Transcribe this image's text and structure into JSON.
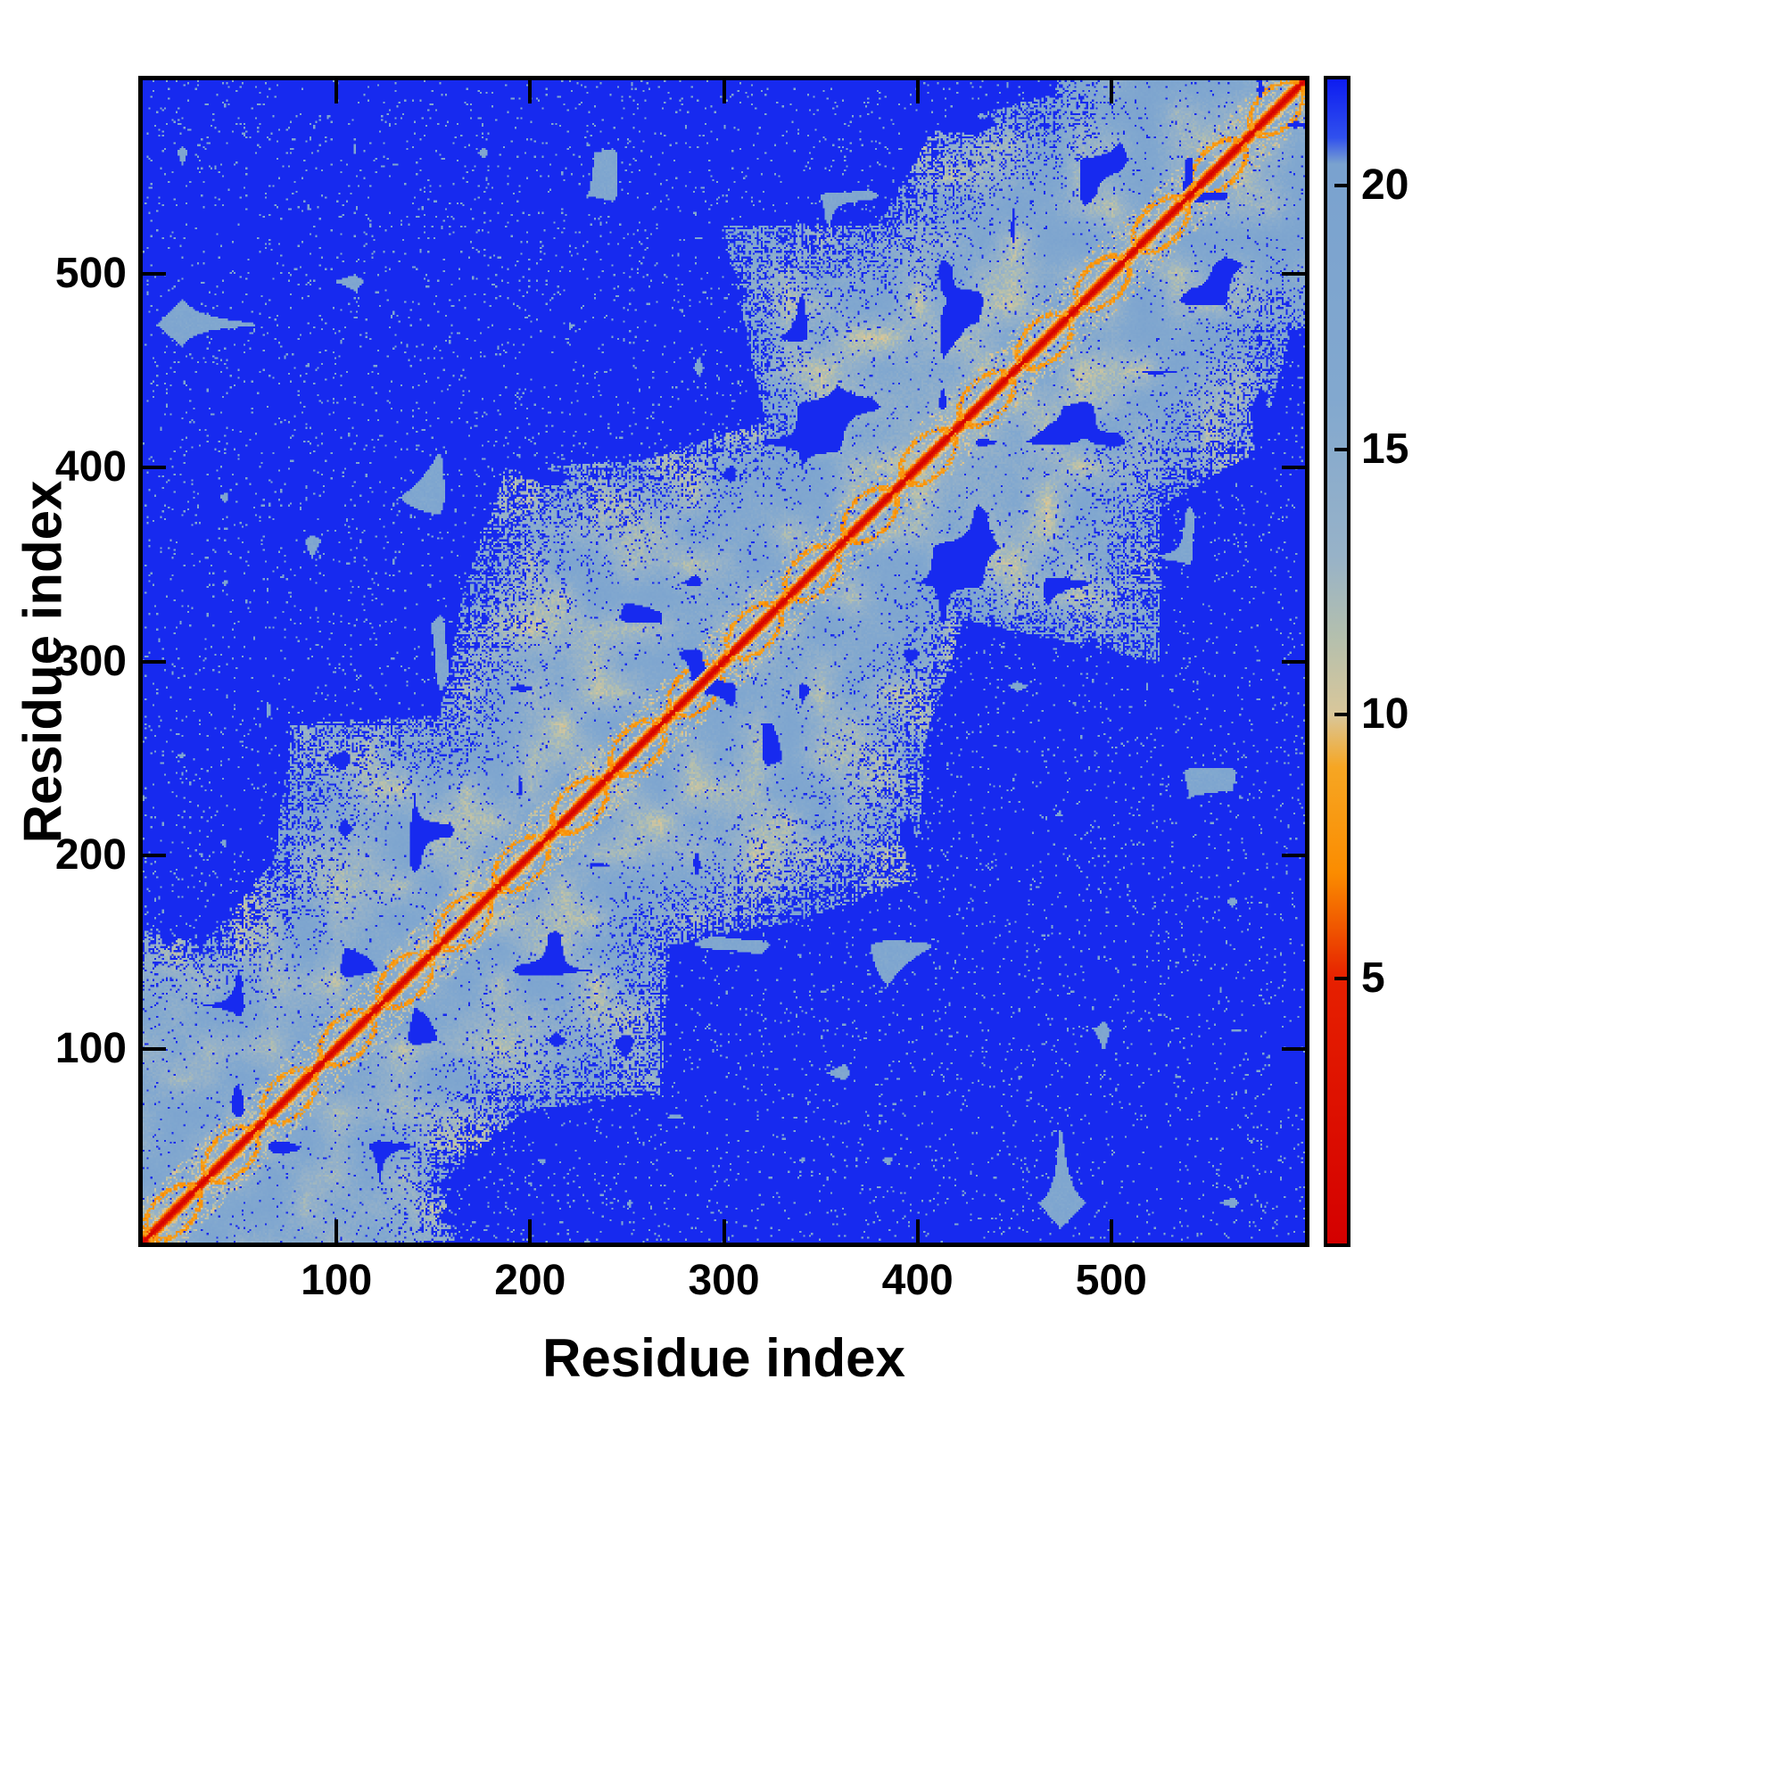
{
  "chart_data": {
    "type": "heatmap",
    "title": "",
    "xlabel": "Residue index",
    "ylabel": "Residue index",
    "x_ticks": [
      100,
      200,
      300,
      400,
      500
    ],
    "y_ticks": [
      100,
      200,
      300,
      400,
      500
    ],
    "x_range": [
      0,
      600
    ],
    "y_range": [
      0,
      600
    ],
    "n_residues": 600,
    "grid": false,
    "legend": "colorbar-right",
    "description": "Symmetric residue-residue distance map: red zero-distance diagonal, orange helical ring motifs along the diagonal, light steel-blue mid-range contact cloud with dithered dark-blue speckles, saturated blue for large distances far from the diagonal.",
    "colorbar": {
      "range": [
        0,
        22
      ],
      "ticks": [
        5,
        10,
        15,
        20
      ],
      "stops": [
        {
          "v": 0,
          "color": "#d40000"
        },
        {
          "v": 5,
          "color": "#e62000"
        },
        {
          "v": 6,
          "color": "#f05800"
        },
        {
          "v": 7,
          "color": "#fb8c00"
        },
        {
          "v": 9,
          "color": "#f6a623"
        },
        {
          "v": 10,
          "color": "#d9c79a"
        },
        {
          "v": 11.5,
          "color": "#b3bfae"
        },
        {
          "v": 13,
          "color": "#97b2c8"
        },
        {
          "v": 16,
          "color": "#82a8cf"
        },
        {
          "v": 20.4,
          "color": "#7aa2cf"
        },
        {
          "v": 20.9,
          "color": "#3050ee"
        },
        {
          "v": 22,
          "color": "#0d1cf0"
        }
      ]
    },
    "synthesis": {
      "seed": 1337,
      "diagonal_value": 0,
      "near_band_slope": 1.9,
      "ring_period": 30,
      "ring_radius": 12,
      "cloud_base": 55,
      "cloud_var": 185,
      "cloud_mean_value": 14.8,
      "blue_value": 21.7
    }
  }
}
